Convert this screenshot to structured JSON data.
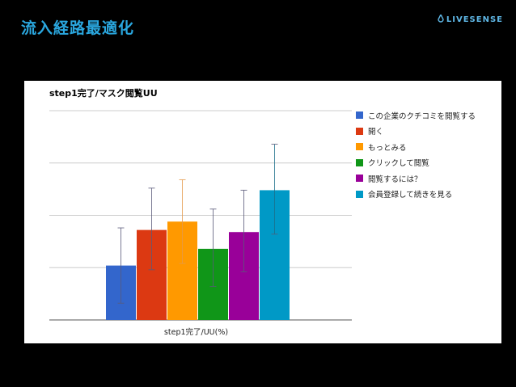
{
  "slide": {
    "title": "流入経路最適化",
    "brand": "LIVESENSE"
  },
  "colors": {
    "background": "#000000",
    "title": "#2aa7df",
    "brand": "#5fb7e6",
    "grid": "#cccccc"
  },
  "chart_data": {
    "type": "bar",
    "title": "step1完了/マスク閲覧UU",
    "xlabel": "step1完了/UU(%)",
    "ylabel": "",
    "ylim": [
      0,
      100
    ],
    "grid": true,
    "y_ticks_labeled": false,
    "legend_position": "right",
    "series": [
      {
        "name": "この企業のクチコミを閲覧する",
        "value": 26,
        "error": [
          8,
          44
        ],
        "color": "#3366cc"
      },
      {
        "name": "開く",
        "value": 43,
        "error": [
          24,
          63
        ],
        "color": "#dc3912"
      },
      {
        "name": "もっとみる",
        "value": 47,
        "error": [
          27,
          67
        ],
        "color": "#ff9900"
      },
      {
        "name": "クリックして閲覧",
        "value": 34,
        "error": [
          16,
          53
        ],
        "color": "#109618"
      },
      {
        "name": "閲覧するには？",
        "value": 42,
        "error": [
          23,
          62
        ],
        "color": "#990099"
      },
      {
        "name": "会員登録して続きを見る",
        "value": 62,
        "error": [
          41,
          84
        ],
        "color": "#0099c6"
      }
    ]
  }
}
